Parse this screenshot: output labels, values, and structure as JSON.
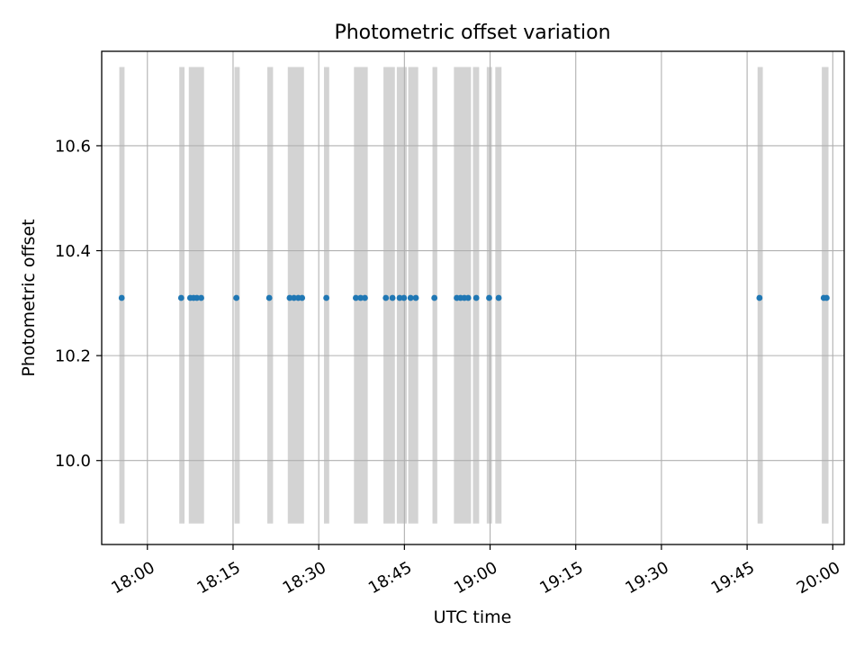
{
  "chart_data": {
    "type": "scatter",
    "title": "Photometric offset variation",
    "xlabel": "UTC time",
    "ylabel": "Photometric offset",
    "x_unit": "UTC time (HH:MM)",
    "xlim": [
      "17:52",
      "20:02"
    ],
    "ylim": [
      9.84,
      10.78
    ],
    "grid": true,
    "legend": "none",
    "x_ticks": [
      "18:00",
      "18:15",
      "18:30",
      "18:45",
      "19:00",
      "19:15",
      "19:30",
      "19:45",
      "20:00"
    ],
    "y_ticks": [
      10.0,
      10.2,
      10.4,
      10.6
    ],
    "y_tick_labels": [
      "10.0",
      "10.2",
      "10.4",
      "10.6"
    ],
    "point_color": "#1f77b4",
    "band_color": "#d3d3d3",
    "band_range": [
      9.88,
      10.75
    ],
    "series": [
      {
        "values": [
          {
            "x": "17:55:30",
            "y": 10.31
          },
          {
            "x": "18:05:55",
            "y": 10.31
          },
          {
            "x": "18:07:30",
            "y": 10.31
          },
          {
            "x": "18:08:05",
            "y": 10.31
          },
          {
            "x": "18:08:40",
            "y": 10.31
          },
          {
            "x": "18:09:25",
            "y": 10.31
          },
          {
            "x": "18:15:35",
            "y": 10.31
          },
          {
            "x": "18:21:20",
            "y": 10.31
          },
          {
            "x": "18:24:55",
            "y": 10.31
          },
          {
            "x": "18:25:40",
            "y": 10.31
          },
          {
            "x": "18:26:25",
            "y": 10.31
          },
          {
            "x": "18:27:05",
            "y": 10.31
          },
          {
            "x": "18:31:20",
            "y": 10.31
          },
          {
            "x": "18:36:30",
            "y": 10.31
          },
          {
            "x": "18:37:20",
            "y": 10.31
          },
          {
            "x": "18:38:05",
            "y": 10.31
          },
          {
            "x": "18:41:45",
            "y": 10.31
          },
          {
            "x": "18:42:55",
            "y": 10.31
          },
          {
            "x": "18:44:10",
            "y": 10.31
          },
          {
            "x": "18:44:55",
            "y": 10.31
          },
          {
            "x": "18:46:05",
            "y": 10.31
          },
          {
            "x": "18:47:00",
            "y": 10.31
          },
          {
            "x": "18:50:15",
            "y": 10.31
          },
          {
            "x": "18:54:10",
            "y": 10.31
          },
          {
            "x": "18:54:50",
            "y": 10.31
          },
          {
            "x": "18:55:30",
            "y": 10.31
          },
          {
            "x": "18:56:10",
            "y": 10.31
          },
          {
            "x": "18:57:35",
            "y": 10.31
          },
          {
            "x": "18:59:50",
            "y": 10.31
          },
          {
            "x": "19:01:30",
            "y": 10.31
          },
          {
            "x": "19:47:10",
            "y": 10.31
          },
          {
            "x": "19:58:25",
            "y": 10.31
          },
          {
            "x": "19:58:55",
            "y": 10.31
          }
        ]
      }
    ],
    "bands": [
      {
        "start": "17:55:05",
        "end": "17:56:00"
      },
      {
        "start": "18:05:35",
        "end": "18:06:30"
      },
      {
        "start": "18:07:15",
        "end": "18:09:55"
      },
      {
        "start": "18:15:15",
        "end": "18:16:10"
      },
      {
        "start": "18:21:00",
        "end": "18:22:00"
      },
      {
        "start": "18:24:35",
        "end": "18:27:25"
      },
      {
        "start": "18:30:55",
        "end": "18:31:50"
      },
      {
        "start": "18:36:10",
        "end": "18:38:35"
      },
      {
        "start": "18:41:20",
        "end": "18:43:20"
      },
      {
        "start": "18:43:40",
        "end": "18:45:25"
      },
      {
        "start": "18:45:40",
        "end": "18:47:25"
      },
      {
        "start": "18:49:55",
        "end": "18:50:45"
      },
      {
        "start": "18:53:40",
        "end": "18:56:40"
      },
      {
        "start": "18:57:00",
        "end": "18:58:05"
      },
      {
        "start": "18:59:25",
        "end": "19:00:20"
      },
      {
        "start": "19:00:55",
        "end": "19:02:00"
      },
      {
        "start": "19:46:50",
        "end": "19:47:45"
      },
      {
        "start": "19:58:05",
        "end": "19:59:15"
      }
    ]
  }
}
